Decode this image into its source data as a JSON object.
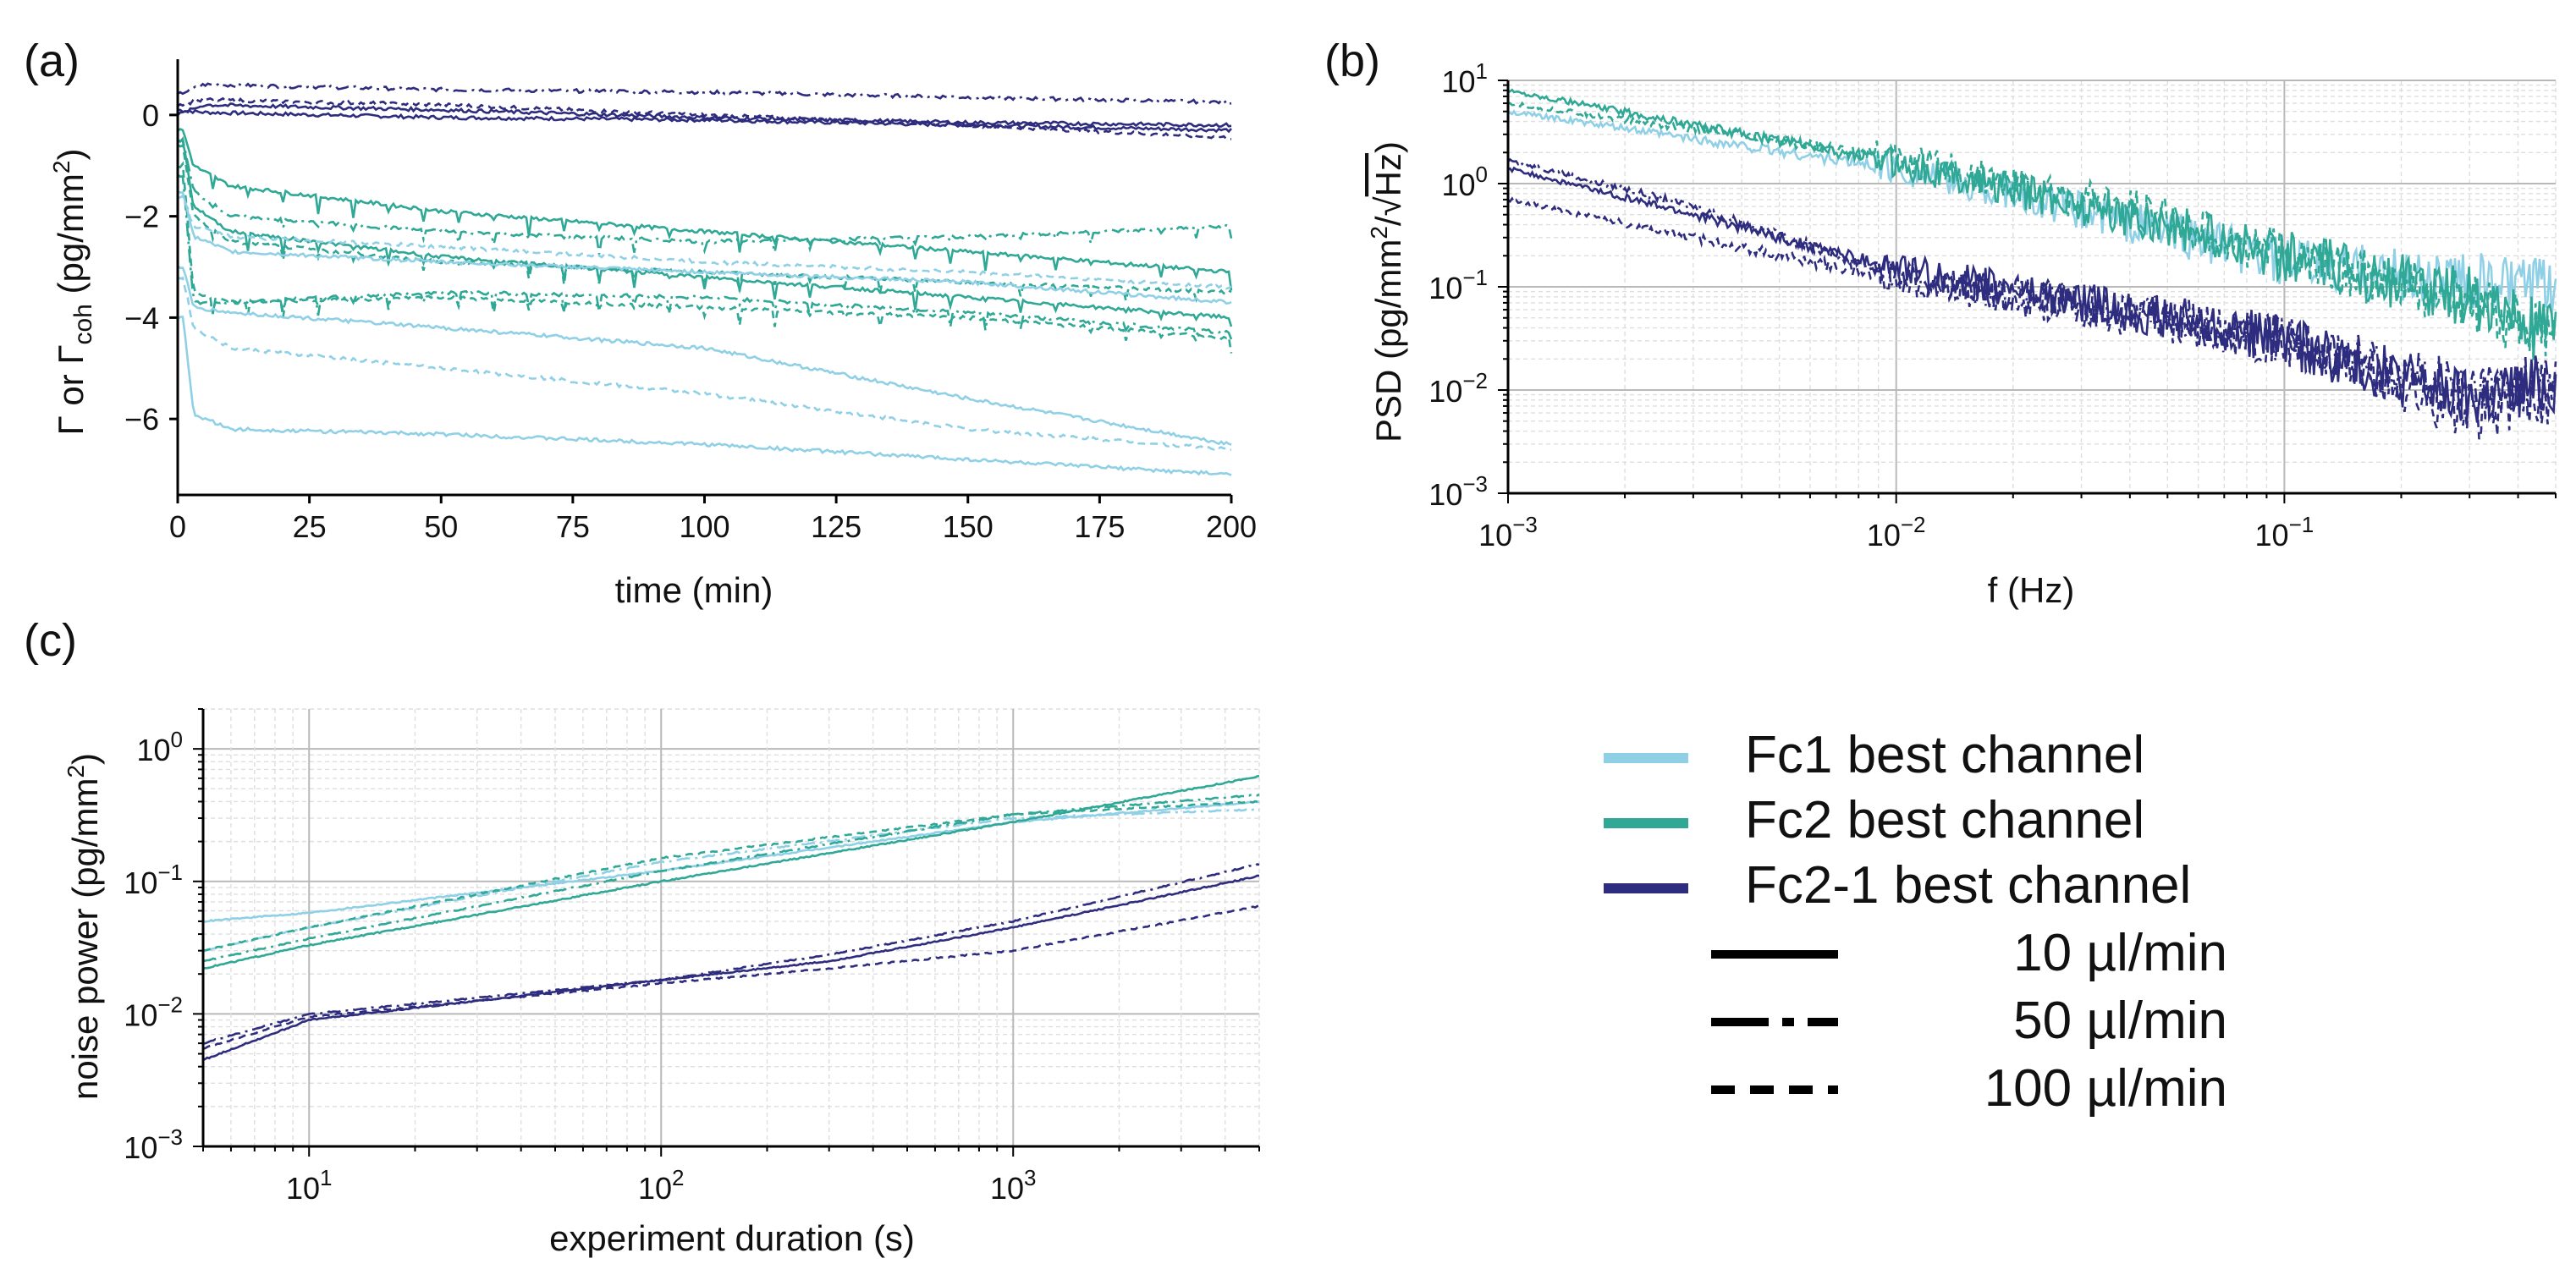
{
  "colors": {
    "fc1": "#8fd0e6",
    "fc2": "#2fa896",
    "fc21": "#2e2c7e",
    "grid_major": "#b9b9b9",
    "grid_minor": "#dedede",
    "axis": "#000000"
  },
  "chart_data": [
    {
      "id": "a",
      "panel_label": "(a)",
      "type": "line",
      "xlabel": "time (min)",
      "ylabel_main": "Γ or Γ",
      "ylabel_sub": "coh",
      "ylabel_unit": " (pg/mm",
      "ylabel_sup": "2",
      "ylabel_end": ")",
      "xlim": [
        0,
        200
      ],
      "ylim": [
        -7.5,
        1.1
      ],
      "xticks": [
        0,
        25,
        50,
        75,
        100,
        125,
        150,
        175,
        200
      ],
      "xtick_labels": [
        "0",
        "25",
        "50",
        "75",
        "100",
        "125",
        "150",
        "175",
        "200"
      ],
      "yticks": [
        0,
        -2,
        -4,
        -6
      ],
      "ytick_labels": [
        "0",
        "−2",
        "−4",
        "−6"
      ],
      "series": [
        {
          "name": "Fc2-1",
          "color": "fc21",
          "style": "solid",
          "x": [
            0,
            5,
            50,
            100,
            150,
            200
          ],
          "y": [
            0.1,
            0.05,
            -0.05,
            -0.1,
            -0.2,
            -0.3
          ]
        },
        {
          "name": "Fc2-1",
          "color": "fc21",
          "style": "dashdot",
          "x": [
            0,
            5,
            50,
            100,
            150,
            200
          ],
          "y": [
            0.4,
            0.6,
            0.5,
            0.45,
            0.35,
            0.25
          ]
        },
        {
          "name": "Fc2-1",
          "color": "fc21",
          "style": "dashed",
          "x": [
            0,
            5,
            50,
            100,
            150,
            200
          ],
          "y": [
            0.2,
            0.3,
            0.2,
            0.0,
            -0.2,
            -0.45
          ]
        },
        {
          "name": "Fc2-1",
          "color": "fc21",
          "style": "solid",
          "x": [
            0,
            5,
            50,
            100,
            150,
            200
          ],
          "y": [
            0.0,
            0.2,
            0.1,
            -0.05,
            -0.15,
            -0.2
          ]
        },
        {
          "name": "Fc2",
          "color": "fc2",
          "style": "solid",
          "x": [
            1,
            3,
            10,
            50,
            100,
            150,
            200
          ],
          "y": [
            -0.3,
            -1.0,
            -1.4,
            -1.9,
            -2.3,
            -2.7,
            -3.1
          ]
        },
        {
          "name": "Fc2",
          "color": "fc2",
          "style": "dashdot",
          "x": [
            1,
            3,
            10,
            50,
            100,
            150,
            200
          ],
          "y": [
            -0.5,
            -1.5,
            -2.0,
            -2.3,
            -2.5,
            -2.4,
            -2.2
          ]
        },
        {
          "name": "Fc2",
          "color": "fc2",
          "style": "dashed",
          "x": [
            1,
            3,
            10,
            50,
            100,
            150,
            200
          ],
          "y": [
            -0.6,
            -2.0,
            -2.5,
            -2.9,
            -3.1,
            -3.3,
            -3.5
          ]
        },
        {
          "name": "Fc2",
          "color": "fc2",
          "style": "solid",
          "x": [
            1,
            3,
            10,
            50,
            100,
            150,
            200
          ],
          "y": [
            -0.5,
            -1.8,
            -2.3,
            -2.8,
            -3.2,
            -3.6,
            -4.0
          ]
        },
        {
          "name": "Fc2",
          "color": "fc2",
          "style": "dashed",
          "x": [
            1,
            3,
            10,
            50,
            100,
            150,
            200
          ],
          "y": [
            -1.0,
            -3.5,
            -3.7,
            -3.6,
            -3.8,
            -4.0,
            -4.4
          ]
        },
        {
          "name": "Fc2",
          "color": "fc2",
          "style": "dashdot",
          "x": [
            1,
            3,
            10,
            50,
            100,
            150,
            200
          ],
          "y": [
            -1.2,
            -3.7,
            -3.7,
            -3.5,
            -3.6,
            -3.9,
            -4.3
          ]
        },
        {
          "name": "Fc1",
          "color": "fc1",
          "style": "solid",
          "x": [
            1,
            3,
            10,
            50,
            100,
            150,
            200
          ],
          "y": [
            -1.5,
            -2.4,
            -2.7,
            -2.9,
            -3.1,
            -3.3,
            -3.7
          ]
        },
        {
          "name": "Fc1",
          "color": "fc1",
          "style": "dashed",
          "x": [
            1,
            3,
            10,
            50,
            100,
            150,
            200
          ],
          "y": [
            -1.6,
            -2.2,
            -2.4,
            -2.6,
            -2.9,
            -3.1,
            -3.4
          ]
        },
        {
          "name": "Fc1",
          "color": "fc1",
          "style": "solid",
          "x": [
            1,
            3,
            10,
            50,
            100,
            150,
            200
          ],
          "y": [
            -3.0,
            -3.8,
            -3.9,
            -4.2,
            -4.6,
            -5.6,
            -6.5
          ]
        },
        {
          "name": "Fc1",
          "color": "fc1",
          "style": "dashed",
          "x": [
            1,
            3,
            10,
            50,
            100,
            150,
            200
          ],
          "y": [
            -3.2,
            -4.2,
            -4.6,
            -5.0,
            -5.5,
            -6.2,
            -6.6
          ]
        },
        {
          "name": "Fc1",
          "color": "fc1",
          "style": "solid",
          "x": [
            1,
            3,
            10,
            50,
            100,
            150,
            200
          ],
          "y": [
            -4.0,
            -5.9,
            -6.2,
            -6.3,
            -6.5,
            -6.8,
            -7.1
          ]
        }
      ]
    },
    {
      "id": "b",
      "panel_label": "(b)",
      "type": "line",
      "xscale": "log",
      "yscale": "log",
      "xlabel": "f (Hz)",
      "ylabel_main": "PSD (pg/mm",
      "ylabel_sup": "2",
      "ylabel_mid": "/√",
      "ylabel_over": "Hz",
      "ylabel_end": ")",
      "xlim": [
        0.001,
        0.5
      ],
      "ylim": [
        0.001,
        10
      ],
      "xtick_bases": [
        "10",
        "10",
        "10"
      ],
      "xtick_exps": [
        "−3",
        "−2",
        "−1"
      ],
      "ytick_bases": [
        "10",
        "10",
        "10",
        "10",
        "10"
      ],
      "ytick_exps": [
        "−3",
        "−2",
        "−1",
        "0",
        "1"
      ],
      "series": [
        {
          "name": "Fc1",
          "color": "fc1",
          "style": "solid",
          "x": [
            0.001,
            0.01,
            0.05,
            0.1,
            0.5
          ],
          "y": [
            5.0,
            1.4,
            0.35,
            0.17,
            0.09
          ]
        },
        {
          "name": "Fc2",
          "color": "fc2",
          "style": "solid",
          "x": [
            0.001,
            0.01,
            0.05,
            0.1,
            0.3,
            0.5
          ],
          "y": [
            8.0,
            1.6,
            0.4,
            0.2,
            0.08,
            0.03
          ]
        },
        {
          "name": "Fc2",
          "color": "fc2",
          "style": "dashed",
          "x": [
            0.001,
            0.01,
            0.05,
            0.1,
            0.3,
            0.5
          ],
          "y": [
            6.0,
            1.8,
            0.45,
            0.2,
            0.07,
            0.03
          ]
        },
        {
          "name": "Fc2-1",
          "color": "fc21",
          "style": "solid",
          "x": [
            0.001,
            0.003,
            0.01,
            0.05,
            0.1,
            0.3,
            0.5
          ],
          "y": [
            1.4,
            0.5,
            0.15,
            0.05,
            0.03,
            0.008,
            0.012
          ]
        },
        {
          "name": "Fc2-1",
          "color": "fc21",
          "style": "dashdot",
          "x": [
            0.001,
            0.003,
            0.01,
            0.05,
            0.1,
            0.3,
            0.5
          ],
          "y": [
            1.7,
            0.6,
            0.13,
            0.05,
            0.03,
            0.01,
            0.012
          ]
        },
        {
          "name": "Fc2-1",
          "color": "fc21",
          "style": "dashed",
          "x": [
            0.001,
            0.003,
            0.01,
            0.05,
            0.1,
            0.3,
            0.5
          ],
          "y": [
            0.7,
            0.3,
            0.12,
            0.045,
            0.03,
            0.006,
            0.01
          ]
        }
      ]
    },
    {
      "id": "c",
      "panel_label": "(c)",
      "type": "line",
      "xscale": "log",
      "yscale": "log",
      "xlabel": "experiment duration (s)",
      "ylabel_main": "noise power (pg/mm",
      "ylabel_sup": "2",
      "ylabel_end": ")",
      "xlim": [
        5,
        5000
      ],
      "ylim": [
        0.001,
        2
      ],
      "xtick_bases": [
        "10",
        "10",
        "10"
      ],
      "xtick_exps": [
        "1",
        "2",
        "3"
      ],
      "ytick_bases": [
        "10",
        "10",
        "10",
        "10"
      ],
      "ytick_exps": [
        "−3",
        "−2",
        "−1",
        "0"
      ],
      "series": [
        {
          "name": "Fc1",
          "color": "fc1",
          "style": "solid",
          "x": [
            5,
            10,
            100,
            1000,
            5000
          ],
          "y": [
            0.05,
            0.058,
            0.12,
            0.28,
            0.4
          ]
        },
        {
          "name": "Fc1",
          "color": "fc1",
          "style": "dashdot",
          "x": [
            5,
            10,
            100,
            1000,
            5000
          ],
          "y": [
            0.03,
            0.045,
            0.14,
            0.3,
            0.35
          ]
        },
        {
          "name": "Fc2",
          "color": "fc2",
          "style": "solid",
          "x": [
            5,
            10,
            100,
            1000,
            5000
          ],
          "y": [
            0.022,
            0.033,
            0.1,
            0.28,
            0.62
          ]
        },
        {
          "name": "Fc2",
          "color": "fc2",
          "style": "dashdot",
          "x": [
            5,
            10,
            100,
            1000,
            5000
          ],
          "y": [
            0.025,
            0.037,
            0.12,
            0.32,
            0.45
          ]
        },
        {
          "name": "Fc2",
          "color": "fc2",
          "style": "dashed",
          "x": [
            5,
            10,
            100,
            1000,
            5000
          ],
          "y": [
            0.03,
            0.045,
            0.15,
            0.32,
            0.4
          ]
        },
        {
          "name": "Fc2-1",
          "color": "fc21",
          "style": "solid",
          "x": [
            5,
            10,
            100,
            300,
            1000,
            5000
          ],
          "y": [
            0.0045,
            0.009,
            0.018,
            0.025,
            0.045,
            0.11
          ]
        },
        {
          "name": "Fc2-1",
          "color": "fc21",
          "style": "dashdot",
          "x": [
            5,
            10,
            100,
            300,
            1000,
            5000
          ],
          "y": [
            0.006,
            0.01,
            0.018,
            0.028,
            0.05,
            0.135
          ]
        },
        {
          "name": "Fc2-1",
          "color": "fc21",
          "style": "dashed",
          "x": [
            5,
            10,
            100,
            300,
            1000,
            5000
          ],
          "y": [
            0.0055,
            0.0095,
            0.017,
            0.022,
            0.03,
            0.065
          ]
        }
      ]
    }
  ],
  "legend": {
    "placement": "right of panel (c)",
    "entries": [
      {
        "label": "Fc1 best channel",
        "color": "fc1",
        "style": "solid"
      },
      {
        "label": "Fc2 best channel",
        "color": "fc2",
        "style": "solid"
      },
      {
        "label": "Fc2-1 best channel",
        "color": "fc21",
        "style": "solid"
      },
      {
        "label": "10 µl/min",
        "color": "axis",
        "style": "solid"
      },
      {
        "label": "50 µl/min",
        "color": "axis",
        "style": "dashdot"
      },
      {
        "label": "100 µl/min",
        "color": "axis",
        "style": "dashed"
      }
    ]
  }
}
